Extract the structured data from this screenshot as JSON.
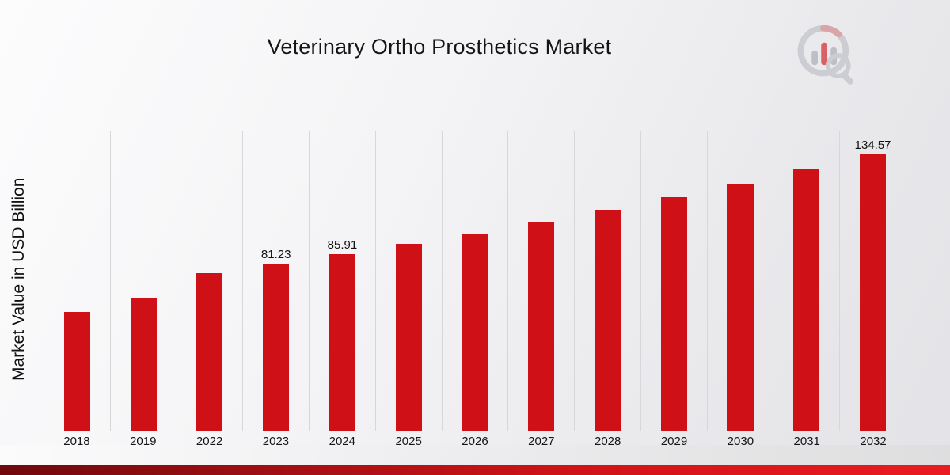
{
  "title": "Veterinary Ortho Prosthetics Market",
  "ylabel": "Market Value in USD Billion",
  "logo_name": "market-research-analytics-logo",
  "colors": {
    "bar": "#cf1117",
    "grid": "#d7d7db",
    "axis": "#b3b3b7",
    "footer_red_dark": "#6e090c",
    "footer_red_bright": "#ea1b21"
  },
  "chart_data": {
    "type": "bar",
    "title": "Veterinary Ortho Prosthetics Market",
    "xlabel": "",
    "ylabel": "Market Value in USD Billion",
    "ylim": [
      0,
      146
    ],
    "grid": "vertical-only",
    "legend": "none",
    "bar_color": "#cf1117",
    "categories": [
      "2018",
      "2019",
      "2022",
      "2023",
      "2024",
      "2025",
      "2026",
      "2027",
      "2028",
      "2029",
      "2030",
      "2031",
      "2032"
    ],
    "values": [
      57.8,
      64.8,
      76.8,
      81.23,
      85.91,
      90.86,
      96.1,
      101.63,
      107.49,
      113.7,
      120.25,
      127.19,
      134.57
    ],
    "labeled_points": [
      {
        "category": "2023",
        "label": "81.23"
      },
      {
        "category": "2024",
        "label": "85.91"
      },
      {
        "category": "2032",
        "label": "134.57"
      }
    ]
  }
}
